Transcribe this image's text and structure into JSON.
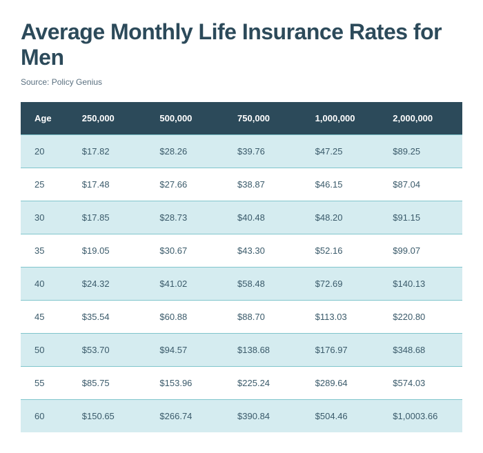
{
  "title": "Average Monthly Life Insurance Rates for Men",
  "source": "Source: Policy Genius",
  "table": {
    "type": "table",
    "header_bg": "#2c4a5a",
    "header_fg": "#ffffff",
    "row_odd_bg": "#d5ecf0",
    "row_even_bg": "#ffffff",
    "border_color": "#7fc5cc",
    "text_color": "#3a5a6a",
    "columns": [
      "Age",
      "250,000",
      "500,000",
      "750,000",
      "1,000,000",
      "2,000,000"
    ],
    "rows": [
      [
        "20",
        "$17.82",
        "$28.26",
        "$39.76",
        "$47.25",
        "$89.25"
      ],
      [
        "25",
        "$17.48",
        "$27.66",
        "$38.87",
        "$46.15",
        "$87.04"
      ],
      [
        "30",
        "$17.85",
        "$28.73",
        "$40.48",
        "$48.20",
        "$91.15"
      ],
      [
        "35",
        "$19.05",
        "$30.67",
        "$43.30",
        "$52.16",
        "$99.07"
      ],
      [
        "40",
        "$24.32",
        "$41.02",
        "$58.48",
        "$72.69",
        "$140.13"
      ],
      [
        "45",
        "$35.54",
        "$60.88",
        "$88.70",
        "$113.03",
        "$220.80"
      ],
      [
        "50",
        "$53.70",
        "$94.57",
        "$138.68",
        "$176.97",
        "$348.68"
      ],
      [
        "55",
        "$85.75",
        "$153.96",
        "$225.24",
        "$289.64",
        "$574.03"
      ],
      [
        "60",
        "$150.65",
        "$266.74",
        "$390.84",
        "$504.46",
        "$1,0003.66"
      ]
    ]
  }
}
